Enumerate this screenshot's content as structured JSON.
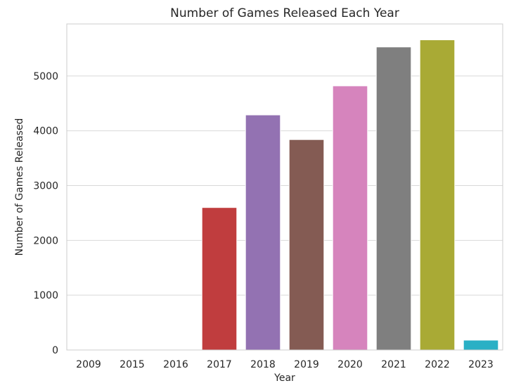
{
  "chart_data": {
    "type": "bar",
    "title": "Number of Games Released Each Year",
    "xlabel": "Year",
    "ylabel": "Number of Games Released",
    "categories": [
      "2009",
      "2015",
      "2016",
      "2017",
      "2018",
      "2019",
      "2020",
      "2021",
      "2022",
      "2023"
    ],
    "values": [
      1,
      2,
      6,
      2600,
      4290,
      3840,
      4820,
      5530,
      5660,
      180
    ],
    "colors": [
      "#1f77b4",
      "#ff7f0e",
      "#2ca02c",
      "#c03d3e",
      "#9372b2",
      "#845b53",
      "#d684bd",
      "#7f7f7f",
      "#a9aa35",
      "#2ab0c5"
    ],
    "ylim": [
      0,
      5950
    ],
    "yticks": [
      0,
      1000,
      2000,
      3000,
      4000,
      5000
    ],
    "grid": "y",
    "legend": "none"
  }
}
